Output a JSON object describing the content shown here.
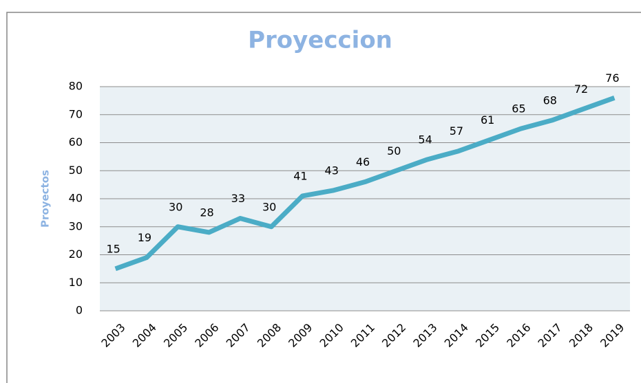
{
  "chart_data": {
    "type": "line",
    "title": "Proyeccion",
    "y_label": "Proyectos",
    "categories": [
      "2003",
      "2004",
      "2005",
      "2006",
      "2007",
      "2008",
      "2009",
      "2010",
      "2011",
      "2012",
      "2013",
      "2014",
      "2015",
      "2016",
      "2017",
      "2018",
      "2019"
    ],
    "series": [
      {
        "name": "Proyectos",
        "color": "#4bacc6",
        "values": [
          15,
          19,
          30,
          28,
          33,
          30,
          41,
          43,
          46,
          50,
          54,
          57,
          61,
          65,
          68,
          72,
          76
        ]
      }
    ],
    "ylim": [
      0,
      80
    ],
    "yticks": [
      0,
      10,
      20,
      30,
      40,
      50,
      60,
      70,
      80
    ],
    "grid": true,
    "data_labels": true
  }
}
